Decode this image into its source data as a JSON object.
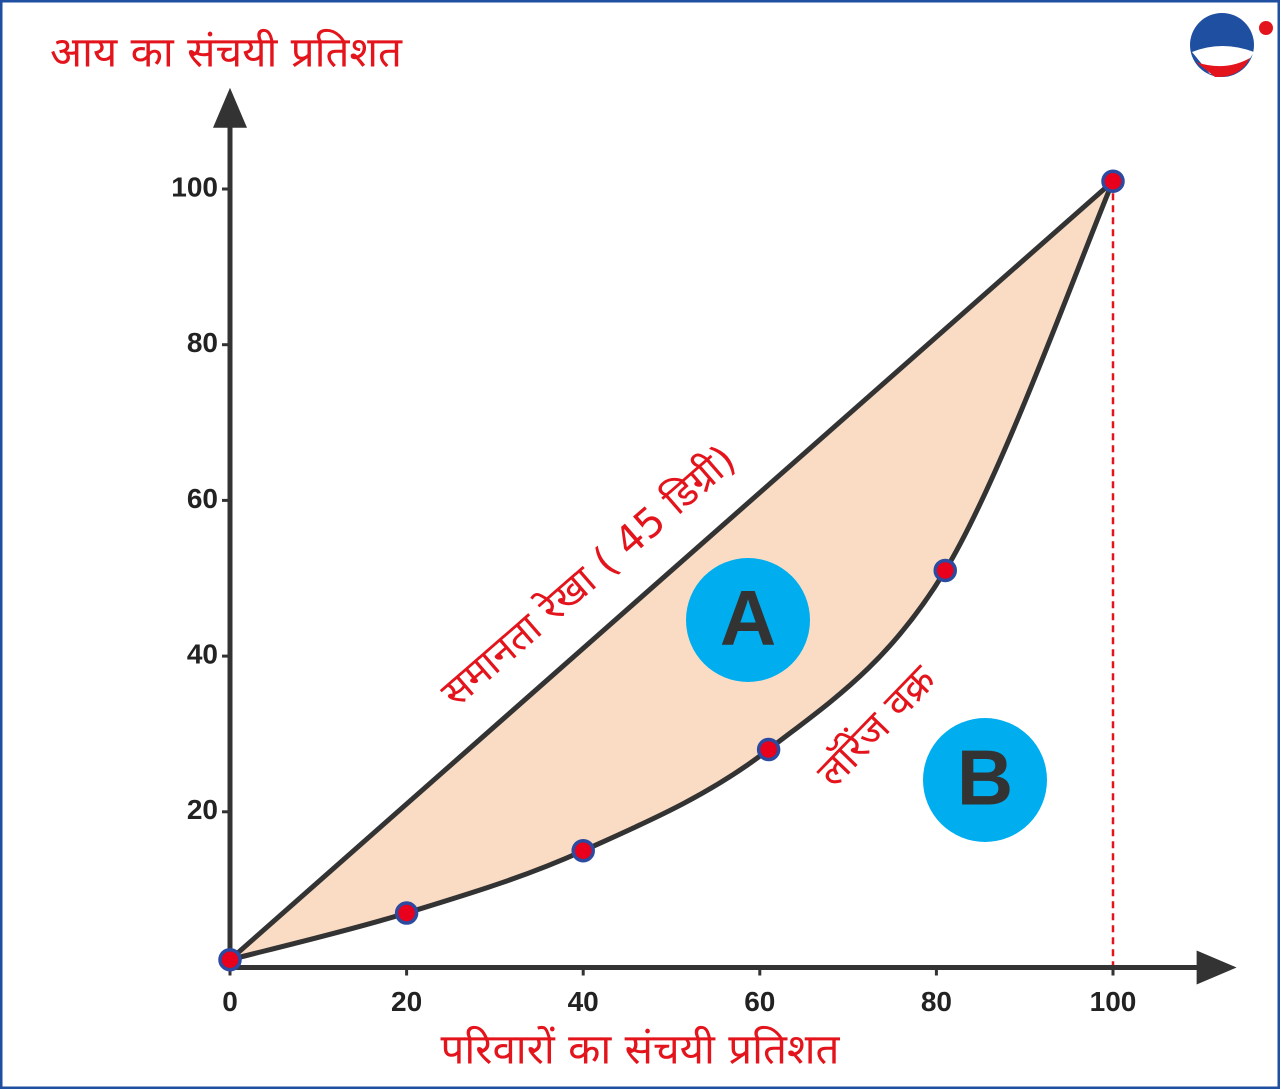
{
  "chart_data": {
    "type": "line",
    "x_label": "परिवारों का संचयी प्रतिशत",
    "y_label": "आय का संचयी प्रतिशत",
    "xlim": [
      0,
      114
    ],
    "ylim": [
      0,
      113
    ],
    "xticks": [
      0,
      20,
      40,
      60,
      80,
      100
    ],
    "yticks": [
      20,
      40,
      60,
      80,
      100
    ],
    "fill_color": "#fadcc4",
    "point_color": "#e8001c",
    "series": [
      {
        "name": "समानता रेखा ( 45 डिग्री)",
        "color": "#333333",
        "x": [
          0,
          100
        ],
        "values": [
          1,
          101
        ]
      },
      {
        "name": "लॉरेंज वक्र",
        "color": "#333333",
        "x": [
          0,
          20,
          40,
          61,
          81,
          100
        ],
        "values": [
          1,
          7,
          15,
          28,
          51,
          101
        ]
      }
    ],
    "annotations": [
      {
        "text": "A",
        "color": "#00aeef"
      },
      {
        "text": "B",
        "color": "#00aeef"
      }
    ]
  }
}
